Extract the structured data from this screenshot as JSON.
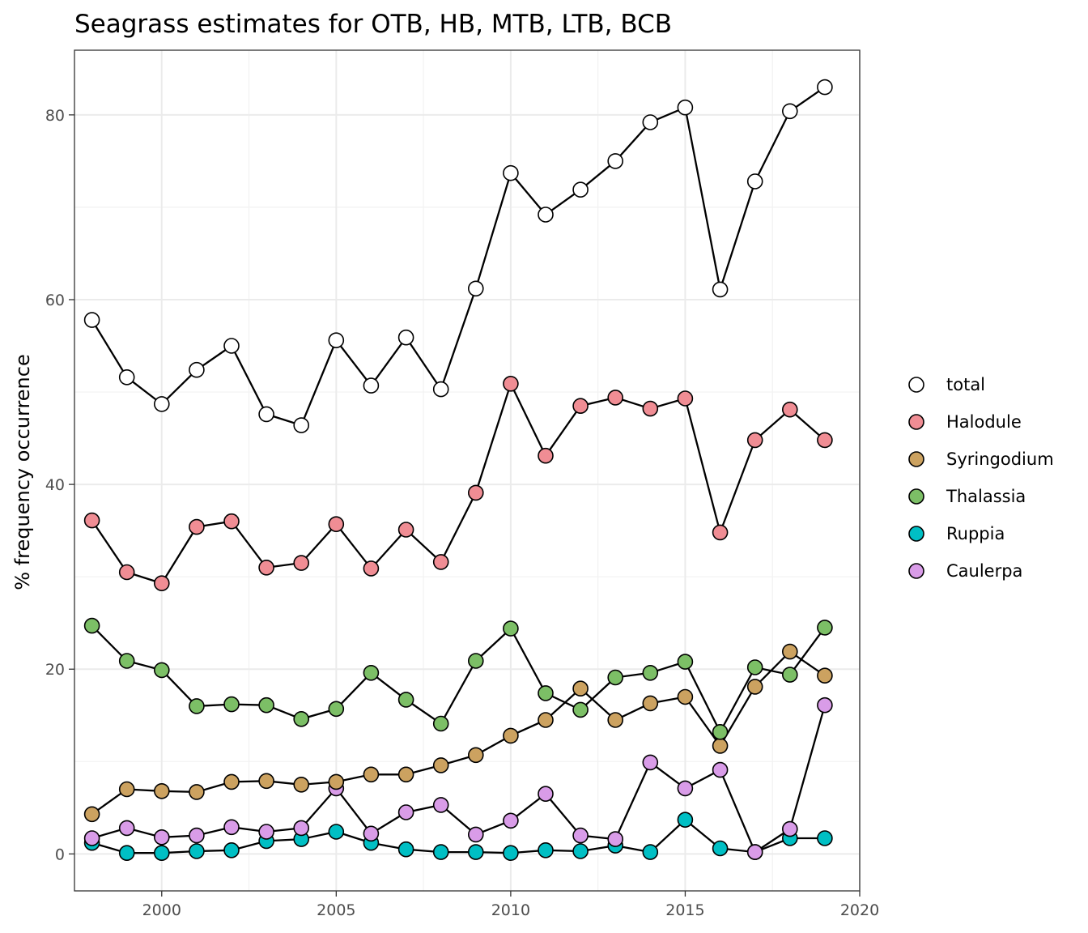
{
  "chart_data": {
    "type": "line",
    "title": "Seagrass estimates for OTB, HB, MTB, LTB, BCB",
    "xlabel": "",
    "ylabel": "% frequency occurrence",
    "xlim": [
      1997.5,
      2020
    ],
    "ylim": [
      -4,
      87
    ],
    "x_ticks": [
      2000,
      2005,
      2010,
      2015,
      2020
    ],
    "y_ticks": [
      0,
      20,
      40,
      60,
      80
    ],
    "grid": true,
    "legend_position": "right",
    "x": [
      1998,
      1999,
      2000,
      2001,
      2002,
      2003,
      2004,
      2005,
      2006,
      2007,
      2008,
      2009,
      2010,
      2011,
      2012,
      2013,
      2014,
      2015,
      2016,
      2017,
      2018,
      2019
    ],
    "series": [
      {
        "name": "Ruppia",
        "color": "#00BFC4",
        "values": [
          1.2,
          0.1,
          0.1,
          0.3,
          0.4,
          1.4,
          1.6,
          2.4,
          1.2,
          0.5,
          0.2,
          0.2,
          0.1,
          0.4,
          0.3,
          0.9,
          0.2,
          3.7,
          0.6,
          0.2,
          1.7,
          1.7
        ]
      },
      {
        "name": "Caulerpa",
        "color": "#D99CE8",
        "values": [
          1.7,
          2.8,
          1.8,
          2.0,
          2.9,
          2.4,
          2.8,
          7.1,
          2.2,
          4.5,
          5.3,
          2.1,
          3.6,
          6.5,
          2.0,
          1.6,
          9.9,
          7.1,
          9.1,
          0.2,
          2.7,
          16.1
        ]
      },
      {
        "name": "Syringodium",
        "color": "#CCA260",
        "values": [
          4.3,
          7.0,
          6.8,
          6.7,
          7.8,
          7.9,
          7.5,
          7.8,
          8.6,
          8.6,
          9.6,
          10.7,
          12.8,
          14.5,
          17.9,
          14.5,
          16.3,
          17.0,
          11.7,
          18.1,
          21.9,
          19.3
        ]
      },
      {
        "name": "Thalassia",
        "color": "#7CBF66",
        "values": [
          24.7,
          20.9,
          19.9,
          16.0,
          16.2,
          16.1,
          14.6,
          15.7,
          19.6,
          16.7,
          14.1,
          20.9,
          24.4,
          17.4,
          15.6,
          19.1,
          19.6,
          20.8,
          13.2,
          20.2,
          19.4,
          24.5
        ]
      },
      {
        "name": "Halodule",
        "color": "#F08D94",
        "values": [
          36.1,
          30.5,
          29.3,
          35.4,
          36.0,
          31.0,
          31.5,
          35.7,
          30.9,
          35.1,
          31.6,
          39.1,
          50.9,
          43.1,
          48.5,
          49.4,
          48.2,
          49.3,
          34.8,
          44.8,
          48.1,
          44.8
        ]
      },
      {
        "name": "total",
        "color": "#FFFFFF",
        "values": [
          57.8,
          51.6,
          48.7,
          52.4,
          55.0,
          47.6,
          46.4,
          55.6,
          50.7,
          55.9,
          50.3,
          61.2,
          73.7,
          69.2,
          71.9,
          75.0,
          79.2,
          80.8,
          61.1,
          72.8,
          80.4,
          83.0
        ]
      }
    ],
    "legend_order": [
      "total",
      "Halodule",
      "Syringodium",
      "Thalassia",
      "Ruppia",
      "Caulerpa"
    ]
  }
}
